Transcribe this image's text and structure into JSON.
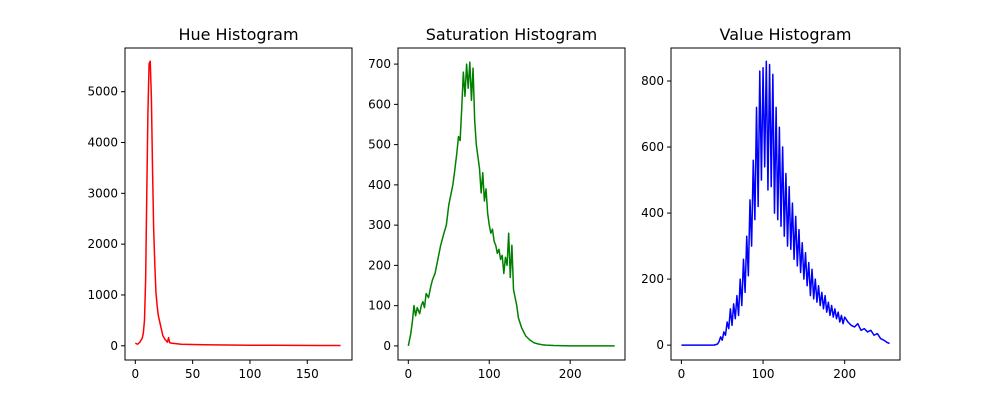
{
  "chart_data": [
    {
      "type": "line",
      "title": "Hue Histogram",
      "xlabel": "",
      "ylabel": "",
      "xlim": [
        -9,
        189
      ],
      "ylim": [
        -280,
        5860
      ],
      "xticks": [
        0,
        50,
        100,
        150
      ],
      "yticks": [
        0,
        1000,
        2000,
        3000,
        4000,
        5000
      ],
      "grid": false,
      "color": "#ff0000",
      "x": [
        0,
        2,
        4,
        6,
        7,
        8,
        9,
        10,
        11,
        12,
        13,
        14,
        15,
        16,
        17,
        18,
        19,
        20,
        22,
        24,
        26,
        27,
        28,
        29,
        30,
        32,
        36,
        40,
        50,
        60,
        80,
        100,
        120,
        140,
        160,
        179
      ],
      "y": [
        50,
        30,
        70,
        150,
        250,
        500,
        1300,
        3000,
        4600,
        5550,
        5600,
        4900,
        3500,
        2300,
        1600,
        1050,
        800,
        600,
        400,
        200,
        120,
        100,
        70,
        160,
        60,
        50,
        40,
        30,
        25,
        20,
        15,
        10,
        10,
        8,
        5,
        5
      ]
    },
    {
      "type": "line",
      "title": "Saturation Histogram",
      "xlabel": "",
      "ylabel": "",
      "xlim": [
        -12.75,
        267.75
      ],
      "ylim": [
        -35,
        740
      ],
      "xticks": [
        0,
        100,
        200
      ],
      "yticks": [
        0,
        100,
        200,
        300,
        400,
        500,
        600,
        700
      ],
      "grid": false,
      "color": "#008000",
      "x": [
        0,
        3,
        5,
        7,
        9,
        11,
        14,
        16,
        18,
        20,
        22,
        25,
        28,
        30,
        33,
        36,
        40,
        44,
        47,
        50,
        52,
        55,
        57,
        60,
        62,
        64,
        66,
        68,
        70,
        72,
        74,
        76,
        78,
        80,
        82,
        84,
        86,
        88,
        90,
        92,
        94,
        96,
        98,
        100,
        102,
        104,
        106,
        108,
        110,
        112,
        114,
        116,
        118,
        120,
        122,
        124,
        126,
        128,
        130,
        132,
        134,
        136,
        140,
        145,
        150,
        155,
        160,
        165,
        170,
        180,
        200,
        220,
        240,
        255
      ],
      "y": [
        0,
        30,
        60,
        100,
        75,
        95,
        80,
        100,
        110,
        95,
        130,
        120,
        150,
        165,
        180,
        210,
        250,
        280,
        300,
        350,
        370,
        400,
        430,
        480,
        520,
        510,
        590,
        680,
        620,
        700,
        640,
        705,
        610,
        690,
        560,
        500,
        470,
        440,
        380,
        430,
        360,
        390,
        330,
        300,
        280,
        290,
        260,
        250,
        230,
        240,
        215,
        225,
        180,
        220,
        200,
        280,
        170,
        250,
        140,
        120,
        100,
        70,
        45,
        25,
        15,
        8,
        5,
        3,
        2,
        1,
        0,
        0,
        0,
        0
      ]
    },
    {
      "type": "line",
      "title": "Value Histogram",
      "xlabel": "",
      "ylabel": "",
      "xlim": [
        -12.75,
        267.75
      ],
      "ylim": [
        -45,
        900
      ],
      "xticks": [
        0,
        100,
        200
      ],
      "yticks": [
        0,
        200,
        400,
        600,
        800
      ],
      "grid": false,
      "color": "#0000ff",
      "x": [
        0,
        20,
        40,
        44,
        46,
        48,
        50,
        52,
        54,
        56,
        58,
        60,
        62,
        64,
        66,
        68,
        70,
        72,
        74,
        76,
        78,
        80,
        82,
        84,
        86,
        88,
        90,
        92,
        94,
        96,
        98,
        100,
        102,
        104,
        106,
        108,
        110,
        112,
        114,
        116,
        118,
        120,
        122,
        124,
        126,
        128,
        130,
        132,
        134,
        136,
        138,
        140,
        142,
        144,
        146,
        148,
        150,
        152,
        154,
        156,
        158,
        160,
        162,
        164,
        166,
        168,
        170,
        172,
        174,
        176,
        178,
        180,
        182,
        184,
        186,
        188,
        190,
        192,
        194,
        196,
        198,
        200,
        204,
        208,
        212,
        216,
        220,
        224,
        228,
        232,
        236,
        240,
        244,
        248,
        252,
        255
      ],
      "y": [
        0,
        0,
        0,
        3,
        10,
        25,
        15,
        40,
        30,
        70,
        50,
        110,
        60,
        125,
        80,
        150,
        90,
        200,
        120,
        260,
        160,
        330,
        210,
        440,
        300,
        560,
        380,
        720,
        420,
        830,
        500,
        840,
        540,
        860,
        470,
        850,
        480,
        820,
        400,
        720,
        380,
        660,
        360,
        600,
        330,
        520,
        300,
        480,
        290,
        430,
        260,
        390,
        240,
        350,
        220,
        310,
        200,
        280,
        180,
        250,
        150,
        230,
        140,
        200,
        130,
        180,
        120,
        160,
        110,
        150,
        100,
        130,
        90,
        120,
        85,
        110,
        80,
        100,
        70,
        90,
        65,
        85,
        70,
        60,
        55,
        65,
        45,
        50,
        40,
        45,
        30,
        35,
        20,
        15,
        8,
        5
      ]
    }
  ]
}
